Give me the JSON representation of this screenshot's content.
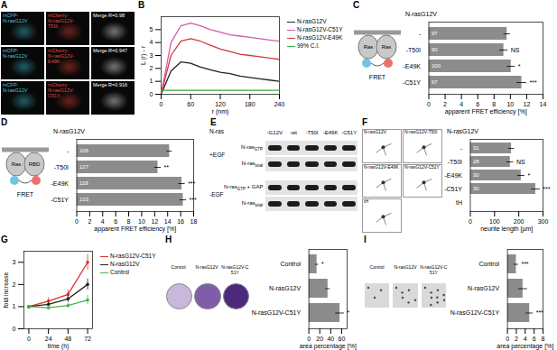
{
  "chart_data": [
    {
      "title": "A",
      "type": "image",
      "panels": [
        [
          {
            "lines": [
              "mCFP-",
              "N-rasG12V"
            ],
            "color": "#46c8e0"
          },
          {
            "lines": [
              "mCherry-",
              "N-rasG12V-",
              "T50I"
            ],
            "color": "#e8453c"
          },
          {
            "lines": [
              "Merge R=0.98"
            ],
            "color": "#ffffff"
          }
        ],
        [
          {
            "lines": [
              "mCFP-",
              "N-rasG12V"
            ],
            "color": "#46c8e0"
          },
          {
            "lines": [
              "mCherry-",
              "N-rasG12V-",
              "E49K"
            ],
            "color": "#e8453c"
          },
          {
            "lines": [
              "Merge R=0.947"
            ],
            "color": "#ffffff"
          }
        ],
        [
          {
            "lines": [
              "mCFP-",
              "N-rasG12V"
            ],
            "color": "#46c8e0"
          },
          {
            "lines": [
              "mCherry-",
              "N-rasG12V-",
              "C51Y"
            ],
            "color": "#e8453c"
          },
          {
            "lines": [
              "Merge R=0.916"
            ],
            "color": "#ffffff"
          }
        ]
      ]
    },
    {
      "title": "B",
      "type": "line",
      "xlabel": "r (nm)",
      "ylabel": "L (r) - r",
      "x": [
        0,
        20,
        40,
        60,
        80,
        100,
        120,
        140,
        160,
        180,
        200,
        220,
        240
      ],
      "xlim": [
        0,
        240
      ],
      "xticks": [
        0,
        60,
        120,
        180,
        240
      ],
      "ylim": [
        0,
        6
      ],
      "yticks": [
        0,
        1,
        2,
        3,
        4,
        5
      ],
      "legend": "right",
      "series": [
        {
          "name": "N-rasG12V",
          "color": "#222222",
          "values": [
            0,
            1.8,
            2.5,
            2.4,
            2.1,
            1.9,
            1.7,
            1.6,
            1.4,
            1.3,
            1.2,
            1.1,
            1.0
          ]
        },
        {
          "name": "N-rasG12V-C51Y",
          "color": "#d65aa8",
          "values": [
            0,
            4.0,
            5.3,
            5.5,
            5.3,
            5.0,
            4.8,
            4.6,
            4.5,
            4.4,
            4.3,
            4.2,
            4.1
          ]
        },
        {
          "name": "N-rasG12V-E49K",
          "color": "#d23a3a",
          "values": [
            0,
            3.0,
            4.1,
            4.3,
            4.1,
            3.8,
            3.5,
            3.3,
            3.1,
            3.0,
            2.9,
            2.8,
            2.7
          ]
        },
        {
          "name": "99% C.I.",
          "color": "#3aa845",
          "values": [
            0.3,
            0.3,
            0.3,
            0.3,
            0.3,
            0.3,
            0.3,
            0.3,
            0.3,
            0.3,
            0.3,
            0.3,
            0.3
          ]
        }
      ]
    },
    {
      "title": "C",
      "type": "bar",
      "orientation": "horizontal",
      "group_label": "N-rasG12V",
      "diagram_labels": [
        "Ras",
        "Ras",
        "FRET"
      ],
      "categories": [
        "-",
        "-T50I",
        "-E49K",
        "-C51Y"
      ],
      "values": [
        9.6,
        9.2,
        10.1,
        11.4
      ],
      "errors": [
        0.4,
        0.5,
        0.5,
        0.6
      ],
      "n": [
        97,
        90,
        100,
        67
      ],
      "significance": [
        null,
        "NS",
        "*",
        "***"
      ],
      "color": "#8c8c8c",
      "xlim": [
        0,
        14
      ],
      "xticks": [
        0,
        2,
        4,
        6,
        8,
        10,
        12,
        14
      ],
      "xlabel": "apparent FRET efficiency [%]"
    },
    {
      "title": "D",
      "type": "bar",
      "orientation": "horizontal",
      "group_label": "N-rasG12V",
      "diagram_labels": [
        "Ras",
        "RBD",
        "FRET"
      ],
      "categories": [
        "-",
        "-T50I",
        "-E49K",
        "-C51Y"
      ],
      "values": [
        14.3,
        12.5,
        16.2,
        16.4
      ],
      "errors": [
        0.4,
        0.5,
        0.5,
        0.5
      ],
      "n": [
        106,
        127,
        118,
        133
      ],
      "significance": [
        null,
        "**",
        "***",
        "***"
      ],
      "color": "#8c8c8c",
      "xlim": [
        0,
        18
      ],
      "xticks": [
        0,
        2,
        4,
        6,
        8,
        10,
        12,
        14,
        16,
        18
      ],
      "xlabel": "apparent FRET efficiency [%]"
    },
    {
      "title": "E",
      "type": "image",
      "header": "N-ras",
      "columns": [
        "-G12V",
        "-wt",
        "-T50I",
        "-E49K",
        "-C51Y"
      ],
      "groups": [
        {
          "label": "+EGF",
          "rows": [
            {
              "main": "N-ras",
              "sub": "GTP"
            },
            {
              "main": "N-ras",
              "sub": "total"
            }
          ]
        },
        {
          "label": "-EGF",
          "rows": [
            {
              "main": "N-ras",
              "sub": "GTP",
              "after": " + GAP"
            },
            {
              "main": "N-ras",
              "sub": "total"
            }
          ]
        }
      ]
    },
    {
      "title": "F",
      "type": "bar",
      "orientation": "horizontal",
      "group_label": "N-rasG12V",
      "image_labels": [
        "N-rasG12V",
        "N-rasG12V-T50I",
        "N-rasG12V-E49K",
        "N-rasG12V-C51Y",
        "tH"
      ],
      "categories": [
        "-",
        "-T50I",
        "-E49K",
        "-C51Y",
        "tH"
      ],
      "values": [
        170,
        165,
        210,
        270,
        null
      ],
      "errors": [
        12,
        14,
        15,
        18,
        null
      ],
      "n": [
        31,
        28,
        30,
        30,
        null
      ],
      "significance": [
        null,
        "NS",
        "*",
        "***",
        null
      ],
      "color": "#8c8c8c",
      "xlim": [
        0,
        300
      ],
      "xticks": [
        0,
        100,
        200,
        300
      ],
      "xlabel": "neurite length [µm]"
    },
    {
      "title": "G",
      "type": "line",
      "xlabel": "time (h)",
      "ylabel": "fold increase",
      "x": [
        0,
        24,
        48,
        72
      ],
      "xlim": [
        -6,
        78
      ],
      "xticks": [
        0,
        24,
        48,
        72
      ],
      "ylim": [
        0,
        3.5
      ],
      "yticks": [
        0,
        1,
        2,
        3
      ],
      "legend": "right",
      "marker": "circle",
      "series": [
        {
          "name": "N-rasG12V-C51Y",
          "color": "#d8322a",
          "values": [
            1,
            1.25,
            1.55,
            3.0
          ],
          "errors": [
            0.05,
            0.15,
            0.2,
            0.35
          ]
        },
        {
          "name": "N-rasG12V",
          "color": "#222222",
          "values": [
            1,
            1.1,
            1.35,
            2.0
          ],
          "errors": [
            0.05,
            0.1,
            0.15,
            0.25
          ]
        },
        {
          "name": "Control",
          "color": "#4caf50",
          "values": [
            1,
            0.95,
            1.05,
            1.3
          ],
          "errors": [
            0.05,
            0.1,
            0.1,
            0.2
          ]
        }
      ]
    },
    {
      "title": "H",
      "type": "bar",
      "orientation": "horizontal",
      "image_labels": [
        "Control",
        "N-rasG12V",
        "N-rasG12V-C51Y"
      ],
      "categories": [
        "Control",
        "N-rasG12V",
        "N-rasG12V-C51Y"
      ],
      "values": [
        15,
        35,
        57
      ],
      "errors": [
        3,
        4,
        8
      ],
      "significance": [
        "*",
        null,
        "*"
      ],
      "color": "#8c8c8c",
      "xlim": [
        0,
        70
      ],
      "xticks": [
        0,
        20,
        40,
        60
      ],
      "xlabel": "area percentage [%]"
    },
    {
      "title": "I",
      "type": "bar",
      "orientation": "horizontal",
      "image_labels": [
        "Control",
        "N-rasG12V",
        "N-rasG12V-C51Y"
      ],
      "categories": [
        "Control",
        "N-rasG12V",
        "N-rasG12V-C51Y"
      ],
      "values": [
        2,
        3.5,
        5
      ],
      "errors": [
        0.5,
        1.0,
        0.8
      ],
      "significance": [
        "***",
        null,
        "***"
      ],
      "color": "#8c8c8c",
      "xlim": [
        0,
        8
      ],
      "xticks": [
        0,
        2,
        4,
        6,
        8
      ],
      "xlabel": "area percentage [%]"
    }
  ]
}
